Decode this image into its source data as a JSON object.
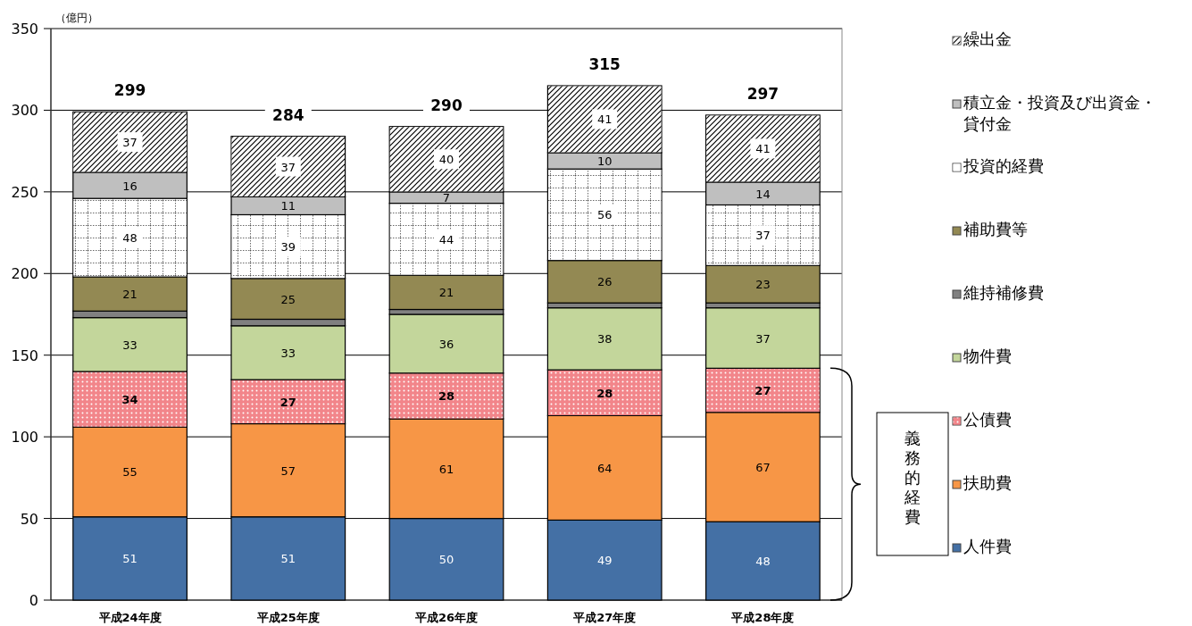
{
  "chart_data": {
    "type": "bar",
    "stacked": true,
    "ylabel": "（億円）",
    "categories": [
      "平成24年度",
      "平成25年度",
      "平成26年度",
      "平成27年度",
      "平成28年度"
    ],
    "series": [
      {
        "name": "人件費",
        "color": "#4470a5",
        "values": [
          51,
          51,
          50,
          49,
          48
        ]
      },
      {
        "name": "扶助費",
        "color": "#f79646",
        "values": [
          55,
          57,
          61,
          64,
          67
        ]
      },
      {
        "name": "公債費",
        "color": "#f2858a",
        "values": [
          34,
          27,
          28,
          28,
          27
        ]
      },
      {
        "name": "物件費",
        "color": "#c3d69b",
        "values": [
          33,
          33,
          36,
          38,
          37
        ]
      },
      {
        "name": "維持補修費",
        "color": "#808080",
        "values": [
          4,
          4,
          3,
          3,
          3
        ],
        "value_labels": [
          null,
          null,
          null,
          null,
          null
        ]
      },
      {
        "name": "補助費等",
        "color": "#938953",
        "values": [
          21,
          25,
          21,
          26,
          23
        ]
      },
      {
        "name": "投資的経費",
        "color": "#ffffff",
        "values": [
          48,
          39,
          44,
          56,
          37
        ]
      },
      {
        "name": "積立金・投資及び出資金・貸付金",
        "color": "#bfbfbf",
        "values": [
          16,
          11,
          7,
          10,
          14
        ]
      },
      {
        "name": "繰出金",
        "color": "#ffffff",
        "values": [
          37,
          37,
          40,
          41,
          41
        ]
      }
    ],
    "data_labels": true,
    "totals": [
      "299",
      "284",
      "290",
      "315",
      "297"
    ],
    "ylim": [
      0,
      350
    ],
    "yticks": [
      0,
      50,
      100,
      150,
      200,
      250,
      300,
      350
    ],
    "grid": "y",
    "legend": "right",
    "annotations": [
      "義務的経費"
    ]
  }
}
